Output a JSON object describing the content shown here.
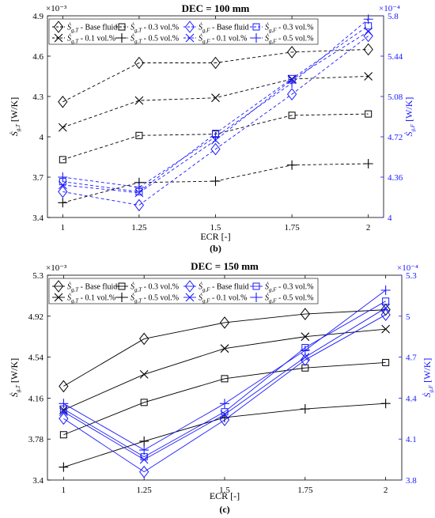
{
  "chart_data": [
    {
      "type": "line",
      "title": "DEC = 100 mm",
      "caption": "(b)",
      "xlabel": "ECR [-]",
      "ylabel_left": "Ṡg,T [W/K]",
      "ylabel_right": "Ṡg,F [W/K]",
      "left_exponent": "×10⁻³",
      "right_exponent": "×10⁻⁴",
      "categories": [
        "1",
        "1.25",
        "1.5",
        "1.75",
        "2"
      ],
      "x": [
        1,
        1.25,
        1.5,
        1.75,
        2
      ],
      "xlim": [
        0.95,
        2.05
      ],
      "ylim_left": [
        3.4,
        4.9
      ],
      "yticks_left": [
        "3.4",
        "3.7",
        "4",
        "4.3",
        "4.6",
        "4.9"
      ],
      "ytick_values_left": [
        3.4,
        3.7,
        4.0,
        4.3,
        4.6,
        4.9
      ],
      "ylim_right": [
        4.0,
        5.8
      ],
      "yticks_right": [
        "4",
        "4.36",
        "4.72",
        "5.08",
        "5.44",
        "5.8"
      ],
      "ytick_values_right": [
        4.0,
        4.36,
        4.72,
        5.08,
        5.44,
        5.8
      ],
      "grid": false,
      "legend": "top-left",
      "line_style": "dashed",
      "series": [
        {
          "name": "Ṡg,T - Base fluid",
          "axis": "left",
          "marker": "diamond",
          "color": "#000000",
          "values": [
            4.26,
            4.55,
            4.55,
            4.63,
            4.65
          ]
        },
        {
          "name": "Ṡg,T - 0.3 vol.%",
          "axis": "left",
          "marker": "square",
          "color": "#000000",
          "values": [
            3.83,
            4.01,
            4.02,
            4.16,
            4.17
          ]
        },
        {
          "name": "Ṡg,T - 0.1 vol.%",
          "axis": "left",
          "marker": "x",
          "color": "#000000",
          "values": [
            4.07,
            4.27,
            4.29,
            4.43,
            4.45
          ]
        },
        {
          "name": "Ṡg,T - 0.5 vol.%",
          "axis": "left",
          "marker": "plus",
          "color": "#000000",
          "values": [
            3.51,
            3.66,
            3.67,
            3.79,
            3.8
          ]
        },
        {
          "name": "Ṡg,F - Base fluid",
          "axis": "right",
          "marker": "diamond",
          "color": "#1a1aff",
          "values": [
            4.23,
            4.11,
            4.61,
            5.1,
            5.62
          ]
        },
        {
          "name": "Ṡg,F - 0.3 vol.%",
          "axis": "right",
          "marker": "square",
          "color": "#1a1aff",
          "values": [
            4.32,
            4.23,
            4.75,
            5.24,
            5.71
          ]
        },
        {
          "name": "Ṡg,F - 0.1 vol.%",
          "axis": "right",
          "marker": "x",
          "color": "#1a1aff",
          "values": [
            4.29,
            4.22,
            4.69,
            5.23,
            5.66
          ]
        },
        {
          "name": "Ṡg,F - 0.5 vol.%",
          "axis": "right",
          "marker": "plus",
          "color": "#1a1aff",
          "values": [
            4.36,
            4.27,
            4.72,
            5.2,
            5.77
          ]
        }
      ]
    },
    {
      "type": "line",
      "title": "DEC = 150 mm",
      "caption": "(c)",
      "xlabel": "ECR [-]",
      "ylabel_left": "Ṡg,T [W/K]",
      "ylabel_right": "Ṡg,F [W/K]",
      "left_exponent": "×10⁻³",
      "right_exponent": "×10⁻⁴",
      "categories": [
        "1",
        "1.25",
        "1.5",
        "1.75",
        "2"
      ],
      "x": [
        1,
        1.25,
        1.5,
        1.75,
        2
      ],
      "xlim": [
        0.95,
        2.05
      ],
      "ylim_left": [
        3.4,
        5.3
      ],
      "yticks_left": [
        "3.4",
        "3.78",
        "4.16",
        "4.54",
        "4.92",
        "5.3"
      ],
      "ytick_values_left": [
        3.4,
        3.78,
        4.16,
        4.54,
        4.92,
        5.3
      ],
      "ylim_right": [
        3.8,
        5.3
      ],
      "yticks_right": [
        "3.8",
        "4.1",
        "4.4",
        "4.7",
        "5",
        "5.3"
      ],
      "ytick_values_right": [
        3.8,
        4.1,
        4.4,
        4.7,
        5.0,
        5.3
      ],
      "grid": false,
      "legend": "top-left",
      "line_style": "solid",
      "series": [
        {
          "name": "Ṡg,T - Base fluid",
          "axis": "left",
          "marker": "diamond",
          "color": "#000000",
          "values": [
            4.27,
            4.71,
            4.86,
            4.94,
            4.98
          ]
        },
        {
          "name": "Ṡg,T - 0.3 vol.%",
          "axis": "left",
          "marker": "square",
          "color": "#000000",
          "values": [
            3.82,
            4.12,
            4.34,
            4.44,
            4.49
          ]
        },
        {
          "name": "Ṡg,T - 0.1 vol.%",
          "axis": "left",
          "marker": "x",
          "color": "#000000",
          "values": [
            4.05,
            4.38,
            4.62,
            4.73,
            4.8
          ]
        },
        {
          "name": "Ṡg,T - 0.5 vol.%",
          "axis": "left",
          "marker": "plus",
          "color": "#000000",
          "values": [
            3.52,
            3.76,
            3.98,
            4.06,
            4.11
          ]
        },
        {
          "name": "Ṡg,F - Base fluid",
          "axis": "right",
          "marker": "diamond",
          "color": "#1a1aff",
          "values": [
            4.25,
            3.86,
            4.24,
            4.68,
            5.01
          ]
        },
        {
          "name": "Ṡg,F - 0.3 vol.%",
          "axis": "right",
          "marker": "square",
          "color": "#1a1aff",
          "values": [
            4.32,
            3.97,
            4.3,
            4.77,
            5.11
          ]
        },
        {
          "name": "Ṡg,F - 0.1 vol.%",
          "axis": "right",
          "marker": "x",
          "color": "#1a1aff",
          "values": [
            4.3,
            3.95,
            4.28,
            4.7,
            5.06
          ]
        },
        {
          "name": "Ṡg,F - 0.5 vol.%",
          "axis": "right",
          "marker": "plus",
          "color": "#1a1aff",
          "values": [
            4.36,
            4.02,
            4.36,
            4.75,
            5.19
          ]
        }
      ]
    }
  ]
}
